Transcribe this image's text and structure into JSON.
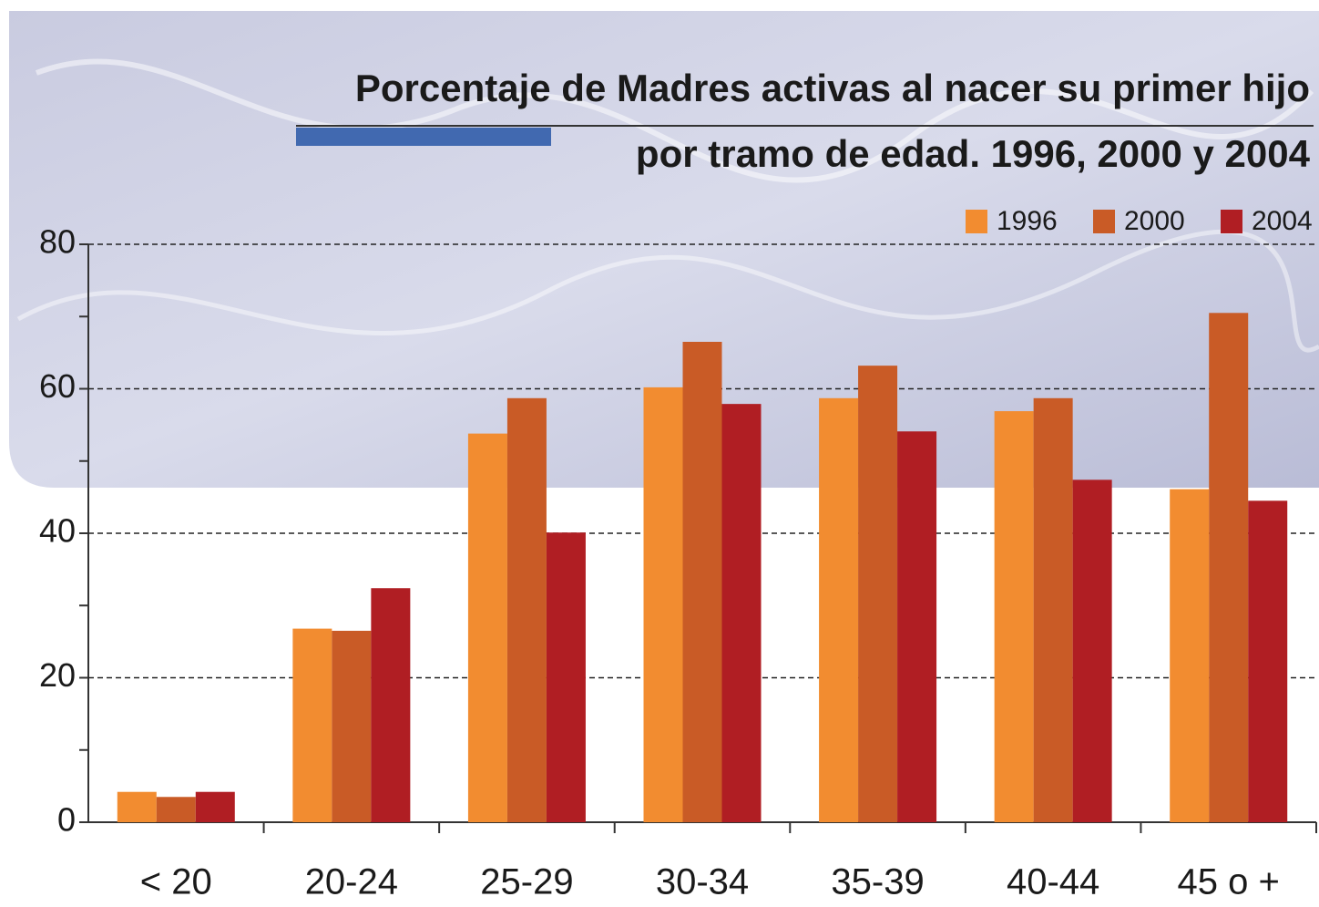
{
  "chart_data": {
    "type": "bar",
    "title": "Porcentaje de Madres activas al nacer su primer hijo",
    "subtitle": "por tramo de edad. 1996, 2000 y 2004",
    "categories": [
      "< 20",
      "20-24",
      "25-29",
      "30-34",
      "35-39",
      "40-44",
      "45 o +"
    ],
    "series": [
      {
        "name": "1996",
        "color": "#f28c30",
        "values": [
          4.2,
          26.8,
          53.8,
          60.2,
          58.7,
          56.9,
          46.1
        ]
      },
      {
        "name": "2000",
        "color": "#c95b26",
        "values": [
          3.5,
          26.5,
          58.7,
          66.5,
          63.2,
          58.7,
          70.5
        ]
      },
      {
        "name": "2004",
        "color": "#b01e23",
        "values": [
          4.2,
          32.4,
          40.1,
          57.9,
          54.1,
          47.4,
          44.5
        ]
      }
    ],
    "ylim": [
      0,
      80
    ],
    "yticks": [
      0,
      20,
      40,
      60,
      80
    ],
    "yticks_minor": [
      10,
      30,
      50,
      70
    ],
    "grid": true,
    "legend": "top-right"
  }
}
